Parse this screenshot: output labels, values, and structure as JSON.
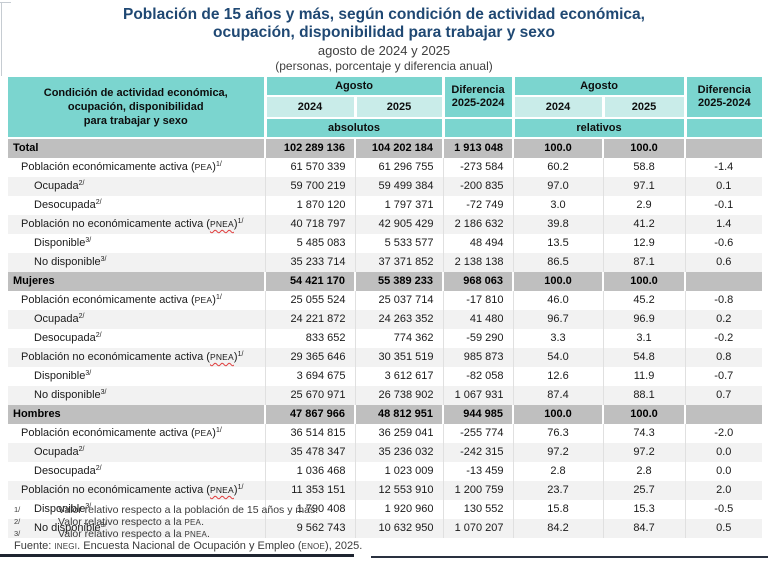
{
  "title": {
    "line1": "Población de 15 años y más, según condición de actividad económica,",
    "line2": "ocupación, disponibilidad para trabajar y sexo",
    "date_line": "agosto de 2024 y 2025",
    "unit_line": "(personas, porcentaje y diferencia anual)"
  },
  "colors": {
    "header_teal": "#7BD5CF",
    "header_teal_light": "#C9ECE9",
    "section_gray": "#BFBFBF",
    "row_stripe": "#F2F2F2",
    "title_blue": "#1F4873",
    "spellcheck_red": "#E03A3A"
  },
  "table": {
    "stub_header": "Condición de actividad económica,\nocupación, disponibilidad\npara trabajar y sexo",
    "month_header": "Agosto",
    "diff_header": "Diferencia\n2025-2024",
    "year_2024": "2024",
    "year_2025": "2025",
    "absolutes_label": "absolutos",
    "relatives_label": "relativos",
    "rows": [
      {
        "label": "Total",
        "section": true,
        "values": [
          "102 289 136",
          "104 202 184",
          "1 913 048",
          "100.0",
          "100.0",
          ""
        ]
      },
      {
        "label": "Población económicamente activa",
        "acronym": "PEA",
        "sup": "1/",
        "indent": 1,
        "values": [
          "61 570 339",
          "61 296 755",
          "-273 584",
          "60.2",
          "58.8",
          "-1.4"
        ]
      },
      {
        "label": "Ocupada",
        "sup": "2/",
        "indent": 2,
        "values": [
          "59 700 219",
          "59 499 384",
          "-200 835",
          "97.0",
          "97.1",
          "0.1"
        ]
      },
      {
        "label": "Desocupada",
        "sup": "2/",
        "indent": 2,
        "values": [
          "1 870 120",
          "1 797 371",
          "-72 749",
          "3.0",
          "2.9",
          "-0.1"
        ]
      },
      {
        "label": "Población no económicamente activa",
        "acronym": "PNEA",
        "sup": "1/",
        "indent": 1,
        "misspelled": true,
        "values": [
          "40 718 797",
          "42 905 429",
          "2 186 632",
          "39.8",
          "41.2",
          "1.4"
        ]
      },
      {
        "label": "Disponible",
        "sup": "3/",
        "indent": 2,
        "values": [
          "5 485 083",
          "5 533 577",
          "48 494",
          "13.5",
          "12.9",
          "-0.6"
        ]
      },
      {
        "label": "No disponible",
        "sup": "3/",
        "indent": 2,
        "values": [
          "35 233 714",
          "37 371 852",
          "2 138 138",
          "86.5",
          "87.1",
          "0.6"
        ]
      },
      {
        "label": "Mujeres",
        "section": true,
        "values": [
          "54 421 170",
          "55 389 233",
          "968 063",
          "100.0",
          "100.0",
          ""
        ]
      },
      {
        "label": "Población económicamente activa",
        "acronym": "PEA",
        "sup": "1/",
        "indent": 1,
        "values": [
          "25 055 524",
          "25 037 714",
          "-17 810",
          "46.0",
          "45.2",
          "-0.8"
        ]
      },
      {
        "label": "Ocupada",
        "sup": "2/",
        "indent": 2,
        "values": [
          "24 221 872",
          "24 263 352",
          "41 480",
          "96.7",
          "96.9",
          "0.2"
        ]
      },
      {
        "label": "Desocupada",
        "sup": "2/",
        "indent": 2,
        "values": [
          "833 652",
          "774 362",
          "-59 290",
          "3.3",
          "3.1",
          "-0.2"
        ]
      },
      {
        "label": "Población no económicamente activa",
        "acronym": "PNEA",
        "sup": "1/",
        "indent": 1,
        "misspelled": true,
        "values": [
          "29 365 646",
          "30 351 519",
          "985 873",
          "54.0",
          "54.8",
          "0.8"
        ]
      },
      {
        "label": "Disponible",
        "sup": "3/",
        "indent": 2,
        "values": [
          "3 694 675",
          "3 612 617",
          "-82 058",
          "12.6",
          "11.9",
          "-0.7"
        ]
      },
      {
        "label": "No disponible",
        "sup": "3/",
        "indent": 2,
        "values": [
          "25 670 971",
          "26 738 902",
          "1 067 931",
          "87.4",
          "88.1",
          "0.7"
        ]
      },
      {
        "label": "Hombres",
        "section": true,
        "values": [
          "47 867 966",
          "48 812 951",
          "944 985",
          "100.0",
          "100.0",
          ""
        ]
      },
      {
        "label": "Población económicamente activa",
        "acronym": "PEA",
        "sup": "1/",
        "indent": 1,
        "values": [
          "36 514 815",
          "36 259 041",
          "-255 774",
          "76.3",
          "74.3",
          "-2.0"
        ]
      },
      {
        "label": "Ocupada",
        "sup": "2/",
        "indent": 2,
        "values": [
          "35 478 347",
          "35 236 032",
          "-242 315",
          "97.2",
          "97.2",
          "0.0"
        ]
      },
      {
        "label": "Desocupada",
        "sup": "2/",
        "indent": 2,
        "values": [
          "1 036 468",
          "1 023 009",
          "-13 459",
          "2.8",
          "2.8",
          "0.0"
        ]
      },
      {
        "label": "Población no económicamente activa",
        "acronym": "PNEA",
        "sup": "1/",
        "indent": 1,
        "misspelled": true,
        "values": [
          "11 353 151",
          "12 553 910",
          "1 200 759",
          "23.7",
          "25.7",
          "2.0"
        ]
      },
      {
        "label": "Disponible",
        "sup": "3/",
        "indent": 2,
        "values": [
          "1 790 408",
          "1 920 960",
          "130 552",
          "15.8",
          "15.3",
          "-0.5"
        ]
      },
      {
        "label": "No disponible",
        "sup": "3/",
        "indent": 2,
        "values": [
          "9 562 743",
          "10 632 950",
          "1 070 207",
          "84.2",
          "84.7",
          "0.5"
        ]
      }
    ]
  },
  "footnotes": [
    {
      "marker": "1/",
      "parts": [
        {
          "t": "Valor relativo respecto a la población de 15 años y más."
        }
      ]
    },
    {
      "marker": "2/",
      "parts": [
        {
          "t": "Valor relativo respecto a la "
        },
        {
          "t": "PEA",
          "acr": true
        },
        {
          "t": "."
        }
      ]
    },
    {
      "marker": "3/",
      "parts": [
        {
          "t": "Valor relativo respecto a la "
        },
        {
          "t": "PNEA",
          "acr": true
        },
        {
          "t": "."
        }
      ]
    }
  ],
  "source": {
    "parts": [
      {
        "t": "Fuente: "
      },
      {
        "t": "INEGI",
        "acr": true
      },
      {
        "t": ". Encuesta Nacional de Ocupación y Empleo ("
      },
      {
        "t": "ENOE",
        "acr": true
      },
      {
        "t": "), 2025."
      }
    ]
  },
  "chart_data": {
    "type": "table",
    "title": "Población de 15 años y más, según condición de actividad económica, ocupación, disponibilidad para trabajar y sexo",
    "subtitle": "agosto de 2024 y 2025 (personas, porcentaje y diferencia anual)",
    "columns": [
      "Condición de actividad económica, ocupación, disponibilidad para trabajar y sexo",
      "Agosto 2024 (absolutos)",
      "Agosto 2025 (absolutos)",
      "Diferencia 2025-2024 (absolutos)",
      "Agosto 2024 (relativos)",
      "Agosto 2025 (relativos)",
      "Diferencia 2025-2024 (relativos)"
    ],
    "rows": [
      [
        "Total",
        102289136,
        104202184,
        1913048,
        100.0,
        100.0,
        null
      ],
      [
        "Población económicamente activa (PEA)",
        61570339,
        61296755,
        -273584,
        60.2,
        58.8,
        -1.4
      ],
      [
        "Ocupada",
        59700219,
        59499384,
        -200835,
        97.0,
        97.1,
        0.1
      ],
      [
        "Desocupada",
        1870120,
        1797371,
        -72749,
        3.0,
        2.9,
        -0.1
      ],
      [
        "Población no económicamente activa (PNEA)",
        40718797,
        42905429,
        2186632,
        39.8,
        41.2,
        1.4
      ],
      [
        "Disponible",
        5485083,
        5533577,
        48494,
        13.5,
        12.9,
        -0.6
      ],
      [
        "No disponible",
        35233714,
        37371852,
        2138138,
        86.5,
        87.1,
        0.6
      ],
      [
        "Mujeres",
        54421170,
        55389233,
        968063,
        100.0,
        100.0,
        null
      ],
      [
        "Población económicamente activa (PEA)",
        25055524,
        25037714,
        -17810,
        46.0,
        45.2,
        -0.8
      ],
      [
        "Ocupada",
        24221872,
        24263352,
        41480,
        96.7,
        96.9,
        0.2
      ],
      [
        "Desocupada",
        833652,
        774362,
        -59290,
        3.3,
        3.1,
        -0.2
      ],
      [
        "Población no económicamente activa (PNEA)",
        29365646,
        30351519,
        985873,
        54.0,
        54.8,
        0.8
      ],
      [
        "Disponible",
        3694675,
        3612617,
        -82058,
        12.6,
        11.9,
        -0.7
      ],
      [
        "No disponible",
        25670971,
        26738902,
        1067931,
        87.4,
        88.1,
        0.7
      ],
      [
        "Hombres",
        47867966,
        48812951,
        944985,
        100.0,
        100.0,
        null
      ],
      [
        "Población económicamente activa (PEA)",
        36514815,
        36259041,
        -255774,
        76.3,
        74.3,
        -2.0
      ],
      [
        "Ocupada",
        35478347,
        35236032,
        -242315,
        97.2,
        97.2,
        0.0
      ],
      [
        "Desocupada",
        1036468,
        1023009,
        -13459,
        2.8,
        2.8,
        0.0
      ],
      [
        "Población no económicamente activa (PNEA)",
        11353151,
        12553910,
        1200759,
        23.7,
        25.7,
        2.0
      ],
      [
        "Disponible",
        1790408,
        1920960,
        130552,
        15.8,
        15.3,
        -0.5
      ],
      [
        "No disponible",
        9562743,
        10632950,
        1070207,
        84.2,
        84.7,
        0.5
      ]
    ]
  }
}
